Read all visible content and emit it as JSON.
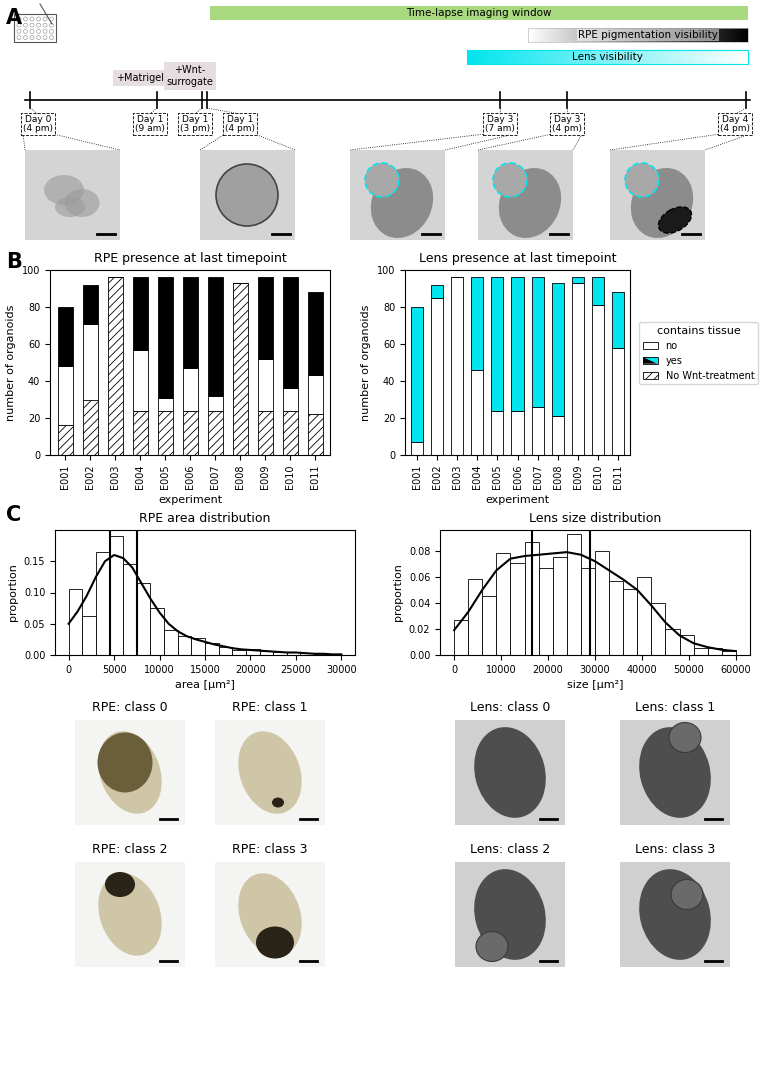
{
  "panel_labels": [
    "A",
    "B",
    "C"
  ],
  "timeline": {
    "bars": [
      {
        "label": "Time-lapse imaging window",
        "color": "#a8d97f"
      },
      {
        "label": "RPE pigmentation visibility",
        "color": "#000000"
      },
      {
        "label": "Lens visibility",
        "color": "#00e5ee"
      }
    ],
    "treatments": [
      "+Matrigel",
      "+Wnt-\nsurrogate"
    ],
    "timepoints": [
      "Day 0\n(4 pm)",
      "Day 1\n(9 am)",
      "Day 1\n(3 pm)",
      "Day 1\n(4 pm)",
      "Day 3\n(7 am)",
      "Day 3\n(4 pm)",
      "Day 4\n(4 pm)"
    ]
  },
  "chart_data": [
    {
      "type": "bar",
      "stacked": true,
      "title": "RPE presence at last timepoint",
      "x_label": "experiment",
      "y_label": "number of organoids",
      "categories": [
        "E001",
        "E002",
        "E003",
        "E004",
        "E005",
        "E006",
        "E007",
        "E008",
        "E009",
        "E010",
        "E011"
      ],
      "series": [
        {
          "name": "No Wnt-treatment",
          "color": "#ffffff",
          "values": [
            16,
            30,
            96,
            24,
            24,
            24,
            24,
            93,
            24,
            24,
            22
          ]
        },
        {
          "name": "no",
          "color": "#ffffff",
          "values": [
            32,
            41,
            0,
            33,
            7,
            23,
            8,
            0,
            28,
            12,
            21
          ]
        },
        {
          "name": "yes",
          "color": "#000000",
          "values": [
            32,
            21,
            0,
            39,
            65,
            49,
            64,
            0,
            44,
            60,
            45
          ]
        }
      ],
      "ylim": [
        0,
        100
      ],
      "yticks": [
        0,
        20,
        40,
        60,
        80,
        100
      ]
    },
    {
      "type": "bar",
      "stacked": true,
      "title": "Lens presence at last timepoint",
      "x_label": "experiment",
      "y_label": "number of organoids",
      "categories": [
        "E001",
        "E002",
        "E003",
        "E004",
        "E005",
        "E006",
        "E007",
        "E008",
        "E009",
        "E010",
        "E011"
      ],
      "series": [
        {
          "name": "no",
          "color": "#ffffff",
          "values": [
            7,
            85,
            96,
            46,
            24,
            24,
            26,
            21,
            93,
            81,
            58
          ]
        },
        {
          "name": "yes",
          "color": "#00e5ee",
          "values": [
            73,
            7,
            0,
            50,
            72,
            72,
            70,
            72,
            3,
            15,
            30
          ]
        }
      ],
      "ylim": [
        0,
        100
      ],
      "yticks": [
        0,
        20,
        40,
        60,
        80,
        100
      ],
      "legend": "right",
      "legend_title": "contains tissue"
    },
    {
      "type": "histogram",
      "title": "RPE area distribution",
      "x_label": "area [µm²]",
      "y_label": "proportion",
      "bins": [
        0,
        1500,
        3000,
        4500,
        6000,
        7500,
        9000,
        10500,
        12000,
        13500,
        15000,
        16500,
        18000,
        19500,
        21000,
        22500,
        24000,
        25500,
        27000,
        28500,
        30000
      ],
      "counts": [
        0.105,
        0.063,
        0.165,
        0.19,
        0.145,
        0.115,
        0.075,
        0.04,
        0.03,
        0.027,
        0.02,
        0.013,
        0.008,
        0.01,
        0.007,
        0.005,
        0.005,
        0.004,
        0.002,
        0.002
      ],
      "density_curve": {
        "x": [
          0,
          1000,
          2000,
          3000,
          4000,
          5000,
          6000,
          7000,
          8000,
          9000,
          10000,
          11000,
          12000,
          13000,
          14000,
          15000,
          16000,
          17000,
          18000,
          19000,
          20000,
          21000,
          22000,
          23000,
          24000,
          25000,
          26000,
          27000,
          28000,
          29000,
          30000
        ],
        "values": [
          0.05,
          0.07,
          0.095,
          0.125,
          0.15,
          0.16,
          0.155,
          0.14,
          0.115,
          0.09,
          0.068,
          0.05,
          0.038,
          0.03,
          0.025,
          0.021,
          0.017,
          0.014,
          0.011,
          0.009,
          0.008,
          0.007,
          0.006,
          0.005,
          0.004,
          0.004,
          0.003,
          0.002,
          0.002,
          0.001,
          0.001
        ]
      },
      "vlines": [
        4500,
        7500
      ],
      "xlim": [
        -1500,
        31500
      ],
      "xticks": [
        0,
        5000,
        10000,
        15000,
        20000,
        25000,
        30000
      ],
      "ylim": [
        0,
        0.2
      ],
      "yticks": [
        {
          "value": 0,
          "label": "0.00"
        },
        {
          "value": 0.05,
          "label": "0.05"
        },
        {
          "value": 0.1,
          "label": "0.10"
        },
        {
          "value": 0.15,
          "label": "0.15"
        }
      ]
    },
    {
      "type": "histogram",
      "title": "Lens size distribution",
      "x_label": "size [µm²]",
      "y_label": "proportion",
      "bins": [
        0,
        3000,
        6000,
        9000,
        12000,
        15000,
        18000,
        21000,
        24000,
        27000,
        30000,
        33000,
        36000,
        39000,
        42000,
        45000,
        48000,
        51000,
        54000,
        57000,
        60000
      ],
      "counts": [
        0.027,
        0.058,
        0.045,
        0.078,
        0.071,
        0.087,
        0.067,
        0.075,
        0.093,
        0.067,
        0.08,
        0.057,
        0.051,
        0.06,
        0.04,
        0.02,
        0.015,
        0.005,
        0.005,
        0.003
      ],
      "density_curve": {
        "x": [
          0,
          3000,
          6000,
          9000,
          12000,
          15000,
          18000,
          21000,
          24000,
          27000,
          30000,
          33000,
          36000,
          39000,
          42000,
          45000,
          48000,
          51000,
          54000,
          57000,
          60000
        ],
        "values": [
          0.019,
          0.033,
          0.05,
          0.065,
          0.074,
          0.076,
          0.077,
          0.078,
          0.079,
          0.077,
          0.072,
          0.065,
          0.058,
          0.05,
          0.038,
          0.025,
          0.015,
          0.009,
          0.006,
          0.004,
          0.003
        ]
      },
      "vlines": [
        16500,
        29000
      ],
      "xlim": [
        -3000,
        63000
      ],
      "xticks": [
        0,
        10000,
        20000,
        30000,
        40000,
        50000,
        60000
      ],
      "ylim": [
        0,
        0.096
      ],
      "yticks": [
        {
          "value": 0,
          "label": "0.00"
        },
        {
          "value": 0.02,
          "label": "0.02"
        },
        {
          "value": 0.04,
          "label": "0.04"
        },
        {
          "value": 0.06,
          "label": "0.06"
        },
        {
          "value": 0.08,
          "label": "0.08"
        }
      ]
    }
  ],
  "image_titles": [
    "RPE: class 0",
    "RPE: class 1",
    "RPE: class 2",
    "RPE: class 3",
    "Lens: class 0",
    "Lens: class 1",
    "Lens: class 2",
    "Lens: class 3"
  ]
}
